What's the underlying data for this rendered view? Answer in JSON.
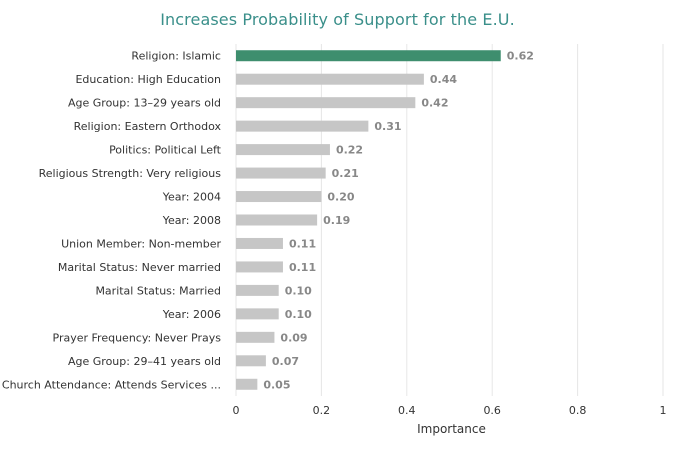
{
  "chart_data": {
    "type": "bar",
    "orientation": "horizontal",
    "title": "Increases Probability of Support for the E.U.",
    "xlabel": "Importance",
    "ylabel": "",
    "xlim": [
      0,
      1
    ],
    "xticks": [
      "0",
      "0.2",
      "0.4",
      "0.6",
      "0.8",
      "1"
    ],
    "grid": true,
    "categories": [
      "Religion: Islamic",
      "Education: High Education",
      "Age Group: 13–29 years old",
      "Religion: Eastern Orthodox",
      "Politics: Political Left",
      "Religious Strength: Very religious",
      "Year: 2004",
      "Year: 2008",
      "Union Member: Non-member",
      "Marital Status: Never married",
      "Marital Status: Married",
      "Year: 2006",
      "Prayer Frequency: Never Prays",
      "Age Group: 29–41 years old",
      "Church Attendance: Attends Services ..."
    ],
    "values": [
      0.62,
      0.44,
      0.42,
      0.31,
      0.22,
      0.21,
      0.2,
      0.19,
      0.11,
      0.11,
      0.1,
      0.1,
      0.09,
      0.07,
      0.05
    ],
    "value_labels": [
      "0.62",
      "0.44",
      "0.42",
      "0.31",
      "0.22",
      "0.21",
      "0.20",
      "0.19",
      "0.11",
      "0.11",
      "0.10",
      "0.10",
      "0.09",
      "0.07",
      "0.05"
    ],
    "colors": {
      "highlight": "#3e8e6e",
      "bar": "#c6c6c6",
      "grid": "#e6e6e6",
      "title": "#3a8f8a"
    }
  }
}
